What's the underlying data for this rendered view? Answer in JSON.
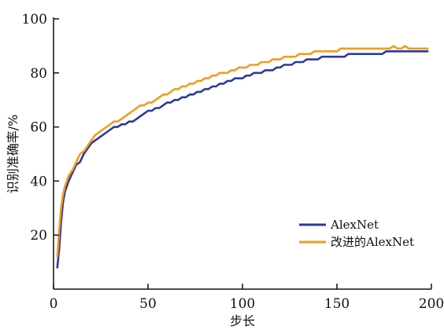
{
  "chart_data": {
    "type": "line",
    "xlabel": "步长",
    "ylabel": "识别准确率/%",
    "xlim": [
      0,
      200
    ],
    "ylim": [
      0,
      100
    ],
    "x_ticks": [
      "0",
      "50",
      "100",
      "150",
      "200"
    ],
    "y_ticks": [
      "20",
      "40",
      "60",
      "80",
      "100"
    ],
    "grid": false,
    "legend_position": "bottom-right",
    "series": [
      {
        "name": "AlexNet",
        "color": "#2b3a9e",
        "x": [
          2,
          3,
          4,
          5,
          6,
          8,
          10,
          12,
          14,
          16,
          18,
          20,
          22,
          24,
          26,
          28,
          30,
          32,
          34,
          36,
          38,
          40,
          42,
          44,
          46,
          48,
          50,
          52,
          54,
          56,
          58,
          60,
          62,
          64,
          66,
          68,
          70,
          72,
          74,
          76,
          78,
          80,
          82,
          84,
          86,
          88,
          90,
          92,
          94,
          96,
          98,
          100,
          102,
          104,
          106,
          108,
          110,
          112,
          114,
          116,
          118,
          120,
          122,
          124,
          126,
          128,
          130,
          132,
          134,
          136,
          138,
          140,
          142,
          144,
          146,
          148,
          150,
          152,
          154,
          156,
          158,
          160,
          162,
          164,
          166,
          168,
          170,
          172,
          174,
          176,
          178,
          180,
          182,
          184,
          186,
          188,
          190,
          192,
          194,
          196,
          198
        ],
        "y": [
          8,
          15,
          25,
          32,
          36,
          40,
          43,
          46,
          47,
          50,
          52,
          54,
          55,
          56,
          57,
          58,
          59,
          60,
          60,
          61,
          61,
          62,
          62,
          63,
          64,
          65,
          66,
          66,
          67,
          67,
          68,
          69,
          69,
          70,
          70,
          71,
          71,
          72,
          72,
          73,
          73,
          74,
          74,
          75,
          75,
          76,
          76,
          77,
          77,
          78,
          78,
          78,
          79,
          79,
          80,
          80,
          80,
          81,
          81,
          81,
          82,
          82,
          83,
          83,
          83,
          84,
          84,
          84,
          85,
          85,
          85,
          85,
          86,
          86,
          86,
          86,
          86,
          86,
          86,
          87,
          87,
          87,
          87,
          87,
          87,
          87,
          87,
          87,
          87,
          88,
          88,
          88,
          88,
          88,
          88,
          88,
          88,
          88,
          88,
          88,
          88
        ]
      },
      {
        "name": "改进的AlexNet",
        "color": "#f39c1f",
        "x": [
          2,
          3,
          4,
          5,
          6,
          8,
          10,
          12,
          14,
          16,
          18,
          20,
          22,
          24,
          26,
          28,
          30,
          32,
          34,
          36,
          38,
          40,
          42,
          44,
          46,
          48,
          50,
          52,
          54,
          56,
          58,
          60,
          62,
          64,
          66,
          68,
          70,
          72,
          74,
          76,
          78,
          80,
          82,
          84,
          86,
          88,
          90,
          92,
          94,
          96,
          98,
          100,
          102,
          104,
          106,
          108,
          110,
          112,
          114,
          116,
          118,
          120,
          122,
          124,
          126,
          128,
          130,
          132,
          134,
          136,
          138,
          140,
          142,
          144,
          146,
          148,
          150,
          152,
          154,
          156,
          158,
          160,
          162,
          164,
          166,
          168,
          170,
          172,
          174,
          176,
          178,
          180,
          182,
          184,
          186,
          188,
          190,
          192,
          194,
          196,
          198
        ],
        "y": [
          12,
          22,
          30,
          35,
          38,
          42,
          44,
          47,
          50,
          51,
          53,
          55,
          57,
          58,
          59,
          60,
          61,
          62,
          62,
          63,
          64,
          65,
          66,
          67,
          68,
          68,
          69,
          69,
          70,
          71,
          72,
          72,
          73,
          74,
          74,
          75,
          75,
          76,
          76,
          77,
          77,
          78,
          78,
          79,
          79,
          80,
          80,
          80,
          81,
          81,
          82,
          82,
          82,
          83,
          83,
          83,
          84,
          84,
          84,
          85,
          85,
          85,
          86,
          86,
          86,
          86,
          87,
          87,
          87,
          87,
          88,
          88,
          88,
          88,
          88,
          88,
          88,
          89,
          89,
          89,
          89,
          89,
          89,
          89,
          89,
          89,
          89,
          89,
          89,
          89,
          89,
          90,
          89,
          89,
          90,
          89,
          89,
          89,
          89,
          89,
          89
        ]
      }
    ]
  }
}
